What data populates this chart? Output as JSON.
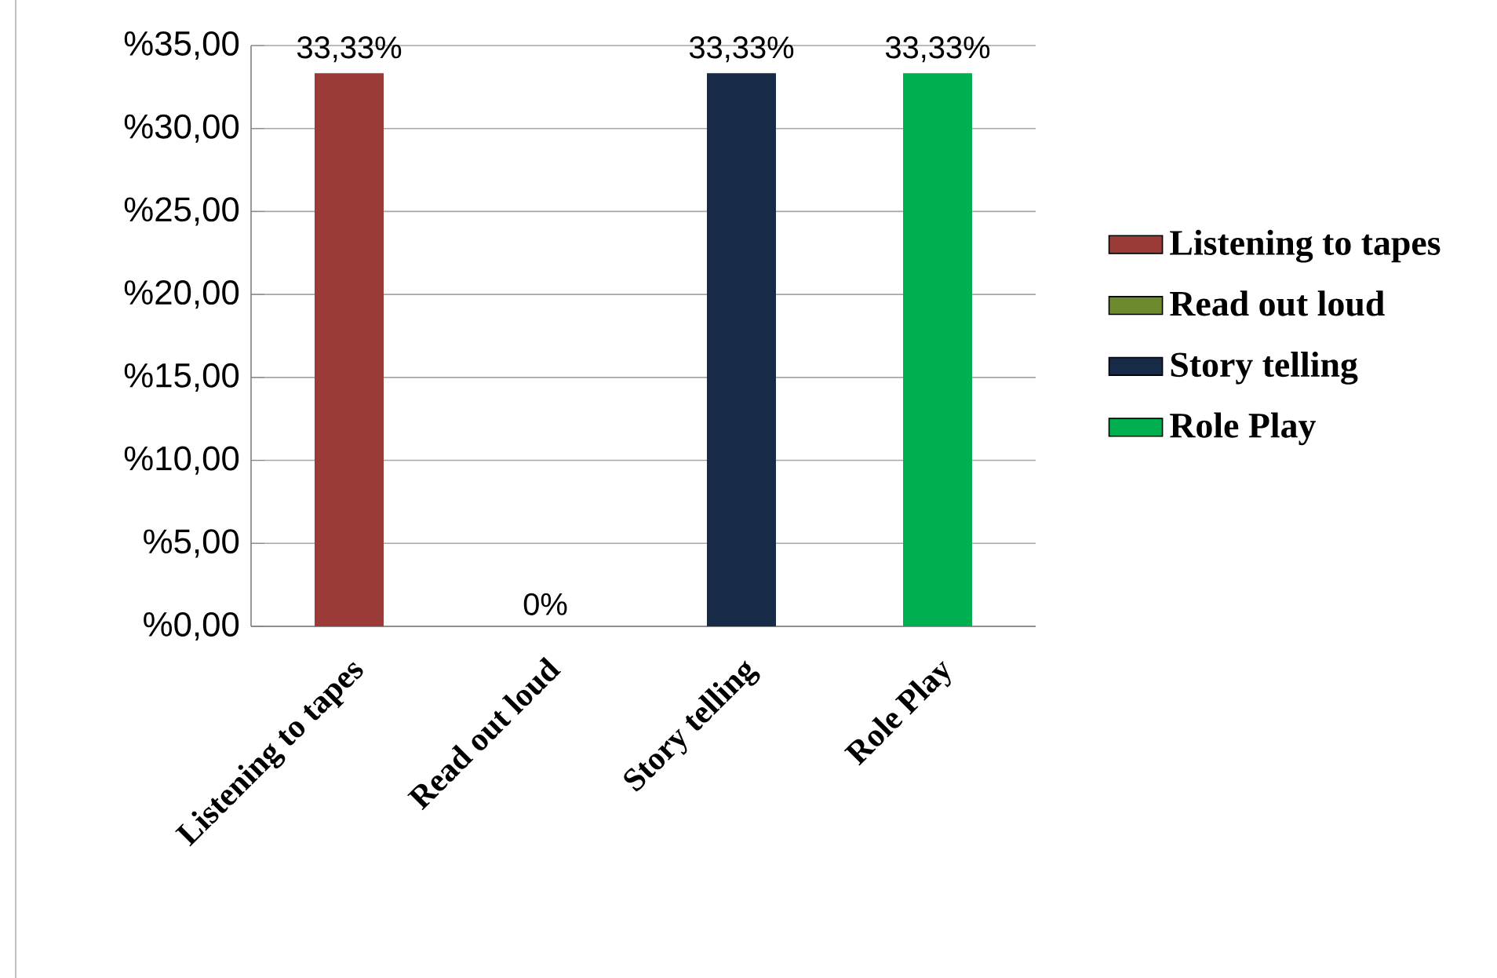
{
  "chart_data": {
    "type": "bar",
    "categories": [
      "Listening to tapes",
      "Read out loud",
      "Story telling",
      "Role Play"
    ],
    "series": [
      {
        "name": "Listening to tapes",
        "color": "#9b3b37",
        "values": [
          33.33,
          null,
          null,
          null
        ],
        "value_labels": [
          "33,33%",
          null,
          null,
          null
        ]
      },
      {
        "name": "Read out loud",
        "color": "#6e8a2e",
        "values": [
          null,
          0,
          null,
          null
        ],
        "value_labels": [
          null,
          "0%",
          null,
          null
        ]
      },
      {
        "name": "Story telling",
        "color": "#172a48",
        "values": [
          null,
          null,
          33.33,
          null
        ],
        "value_labels": [
          null,
          null,
          "33,33%",
          null
        ]
      },
      {
        "name": "Role Play",
        "color": "#00b050",
        "values": [
          null,
          null,
          null,
          33.33
        ],
        "value_labels": [
          null,
          null,
          null,
          "33,33%"
        ]
      }
    ],
    "ylim": [
      0,
      35
    ],
    "yticks": [
      {
        "value": 0,
        "label": "%0,00"
      },
      {
        "value": 5,
        "label": "%5,00"
      },
      {
        "value": 10,
        "label": "%10,00"
      },
      {
        "value": 15,
        "label": "%15,00"
      },
      {
        "value": 20,
        "label": "%20,00"
      },
      {
        "value": 25,
        "label": "%25,00"
      },
      {
        "value": 30,
        "label": "%30,00"
      },
      {
        "value": 35,
        "label": "%35,00"
      }
    ],
    "grid": "y",
    "legend": "right"
  }
}
